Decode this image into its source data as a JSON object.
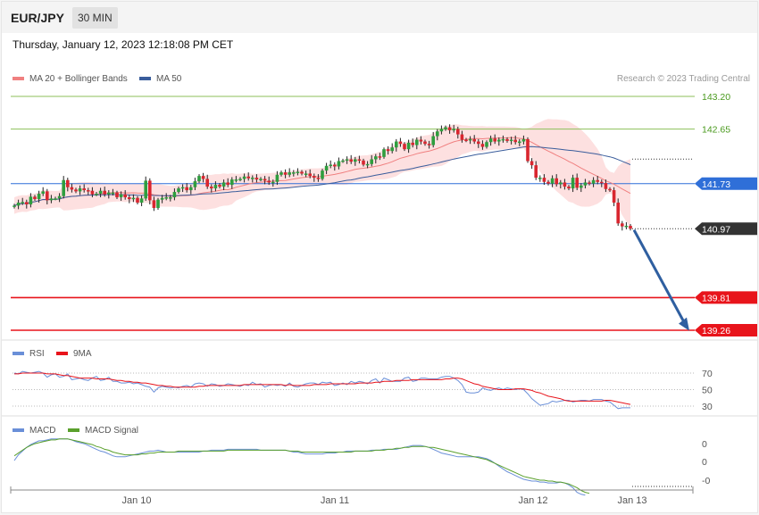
{
  "header": {
    "symbol": "EUR/JPY",
    "timeframe": "30 MIN",
    "datetime": "Thursday, January 12, 2023 12:18:08 PM CET",
    "copyright": "Research © 2023 Trading Central"
  },
  "colors": {
    "candle_up": "#2e9e3e",
    "candle_down": "#d9262f",
    "ma20": "#f08080",
    "ma50": "#3a5d9c",
    "bollinger_fill": "#fde0e0",
    "resistance": "#8cbf5a",
    "pivot": "#2f6fd8",
    "support": "#e8141b",
    "price_tag": "#333333",
    "rsi": "#6a8fd8",
    "rsi_ma": "#e8141b",
    "macd": "#6a8fd8",
    "macd_signal": "#5aa02c",
    "arrow": "#2f5fa0"
  },
  "chart_data": [
    {
      "type": "candlestick",
      "title": "",
      "legend": [
        "MA 20 + Bollinger Bands",
        "MA 50"
      ],
      "x_ticks": [
        "Jan 10",
        "Jan 11",
        "Jan 12",
        "Jan 13"
      ],
      "ylim": [
        139.15,
        143.45
      ],
      "levels": [
        {
          "label": "143.20",
          "value": 143.2,
          "kind": "resistance"
        },
        {
          "label": "142.65",
          "value": 142.65,
          "kind": "resistance"
        },
        {
          "label": "141.73",
          "value": 141.73,
          "kind": "pivot"
        },
        {
          "label": "140.97",
          "value": 140.97,
          "kind": "last"
        },
        {
          "label": "139.81",
          "value": 139.81,
          "kind": "support"
        },
        {
          "label": "139.26",
          "value": 139.26,
          "kind": "support"
        }
      ],
      "arrow": {
        "from": 140.95,
        "to": 139.25
      },
      "close": [
        141.36,
        141.41,
        141.42,
        141.38,
        141.51,
        141.47,
        141.56,
        141.6,
        141.45,
        141.48,
        141.48,
        141.52,
        141.79,
        141.67,
        141.63,
        141.6,
        141.65,
        141.62,
        141.61,
        141.55,
        141.56,
        141.61,
        141.55,
        141.58,
        141.58,
        141.5,
        141.55,
        141.5,
        141.47,
        141.49,
        141.41,
        141.48,
        141.78,
        141.45,
        141.32,
        141.46,
        141.49,
        141.5,
        141.5,
        141.59,
        141.65,
        141.67,
        141.62,
        141.67,
        141.77,
        141.86,
        141.81,
        141.68,
        141.65,
        141.71,
        141.68,
        141.75,
        141.71,
        141.8,
        141.8,
        141.81,
        141.85,
        141.82,
        141.83,
        141.8,
        141.81,
        141.78,
        141.75,
        141.76,
        141.88,
        141.92,
        141.88,
        141.92,
        141.92,
        141.93,
        141.9,
        141.9,
        141.86,
        141.83,
        141.81,
        141.95,
        142.03,
        142.05,
        142.02,
        142.11,
        142.12,
        142.14,
        142.1,
        142.14,
        142.12,
        142.05,
        142.06,
        142.14,
        142.19,
        142.18,
        142.31,
        142.28,
        142.34,
        142.44,
        142.4,
        142.31,
        142.42,
        142.38,
        142.47,
        142.44,
        142.4,
        142.38,
        142.53,
        142.61,
        142.65,
        142.68,
        142.63,
        142.65,
        142.56,
        142.47,
        142.46,
        142.48,
        142.44,
        142.4,
        142.35,
        142.43,
        142.49,
        142.44,
        142.47,
        142.48,
        142.45,
        142.47,
        142.43,
        142.44,
        142.48,
        142.11,
        142.04,
        141.83,
        141.83,
        141.76,
        141.73,
        141.82,
        141.72,
        141.75,
        141.68,
        141.65,
        141.83,
        141.66,
        141.7,
        141.75,
        141.73,
        141.79,
        141.76,
        141.74,
        141.64,
        141.62,
        141.41,
        141.06,
        141.01,
        141.02,
        140.97
      ]
    },
    {
      "type": "line",
      "title": "",
      "legend": [
        "RSI",
        "9MA"
      ],
      "levels": [
        "70",
        "50",
        "30"
      ],
      "ylim": [
        25,
        80
      ],
      "series": [
        {
          "name": "RSI",
          "values": [
            70,
            69,
            72,
            71,
            70,
            71,
            72,
            70,
            65,
            68,
            69,
            65,
            66,
            69,
            62,
            63,
            64,
            62,
            61,
            64,
            66,
            61,
            62,
            65,
            60,
            60,
            58,
            58,
            59,
            57,
            58,
            56,
            54,
            53,
            47,
            52,
            54,
            53,
            52,
            53,
            52,
            54,
            55,
            53,
            57,
            58,
            57,
            54,
            57,
            56,
            54,
            55,
            57,
            56,
            55,
            54,
            56,
            55,
            59,
            56,
            57,
            53,
            55,
            56,
            55,
            56,
            54,
            58,
            54,
            53,
            55,
            57,
            58,
            58,
            56,
            59,
            58,
            59,
            55,
            56,
            58,
            56,
            60,
            58,
            60,
            59,
            57,
            61,
            63,
            58,
            64,
            62,
            60,
            60,
            60,
            64,
            65,
            60,
            61,
            64,
            64,
            63,
            63,
            63,
            65,
            66,
            66,
            64,
            61,
            56,
            47,
            46,
            46,
            47,
            52,
            50,
            49,
            51,
            52,
            50,
            52,
            51,
            50,
            51,
            50,
            45,
            39,
            35,
            31,
            32,
            33,
            36,
            35,
            36,
            37,
            37,
            35,
            36,
            37,
            37,
            36,
            38,
            38,
            38,
            36,
            35,
            31,
            27,
            28,
            28,
            28
          ]
        },
        {
          "name": "9MA",
          "values": [
            69,
            69,
            70,
            70,
            70,
            70,
            70,
            70,
            69,
            69,
            69,
            68,
            67,
            67,
            66,
            65,
            64,
            64,
            64,
            64,
            63,
            63,
            63,
            63,
            62,
            61,
            61,
            60,
            60,
            59,
            59,
            58,
            58,
            57,
            56,
            55,
            55,
            54,
            54,
            53,
            53,
            53,
            53,
            53,
            53,
            54,
            54,
            55,
            55,
            55,
            55,
            55,
            55,
            55,
            55,
            55,
            56,
            56,
            56,
            56,
            56,
            56,
            56,
            56,
            56,
            56,
            55,
            56,
            55,
            55,
            55,
            55,
            55,
            56,
            56,
            56,
            56,
            57,
            57,
            57,
            57,
            57,
            57,
            57,
            58,
            58,
            58,
            58,
            59,
            59,
            60,
            60,
            60,
            61,
            61,
            61,
            61,
            62,
            62,
            62,
            62,
            62,
            62,
            62,
            62,
            63,
            63,
            64,
            64,
            63,
            61,
            59,
            57,
            56,
            54,
            53,
            52,
            51,
            50,
            50,
            50,
            50,
            51,
            51,
            51,
            50,
            49,
            47,
            46,
            44,
            42,
            41,
            40,
            39,
            37,
            36,
            36,
            36,
            36,
            36,
            36,
            36,
            36,
            36,
            37,
            37,
            36,
            35,
            34,
            33,
            32
          ]
        }
      ]
    },
    {
      "type": "line",
      "title": "",
      "legend": [
        "MACD",
        "MACD Signal"
      ],
      "levels": [
        "0",
        "0",
        "-0"
      ],
      "ylim": [
        -0.37,
        0.3
      ],
      "series": [
        {
          "name": "MACD",
          "values": [
            0.01,
            0.07,
            0.11,
            0.15,
            0.18,
            0.2,
            0.22,
            0.22,
            0.23,
            0.24,
            0.24,
            0.24,
            0.24,
            0.24,
            0.23,
            0.21,
            0.2,
            0.19,
            0.17,
            0.15,
            0.13,
            0.11,
            0.1,
            0.08,
            0.06,
            0.05,
            0.05,
            0.05,
            0.06,
            0.07,
            0.08,
            0.09,
            0.1,
            0.11,
            0.11,
            0.12,
            0.11,
            0.1,
            0.1,
            0.1,
            0.1,
            0.1,
            0.1,
            0.1,
            0.1,
            0.1,
            0.11,
            0.11,
            0.12,
            0.12,
            0.12,
            0.12,
            0.13,
            0.13,
            0.13,
            0.13,
            0.13,
            0.13,
            0.13,
            0.13,
            0.12,
            0.12,
            0.12,
            0.12,
            0.12,
            0.12,
            0.12,
            0.11,
            0.1,
            0.1,
            0.09,
            0.08,
            0.08,
            0.08,
            0.08,
            0.08,
            0.09,
            0.09,
            0.09,
            0.1,
            0.1,
            0.11,
            0.11,
            0.11,
            0.11,
            0.11,
            0.11,
            0.12,
            0.12,
            0.12,
            0.13,
            0.13,
            0.13,
            0.13,
            0.14,
            0.15,
            0.16,
            0.17,
            0.17,
            0.17,
            0.16,
            0.15,
            0.13,
            0.11,
            0.09,
            0.08,
            0.07,
            0.06,
            0.05,
            0.05,
            0.05,
            0.05,
            0.05,
            0.05,
            0.04,
            0.03,
            0.01,
            -0.02,
            -0.05,
            -0.08,
            -0.11,
            -0.13,
            -0.15,
            -0.17,
            -0.19,
            -0.2,
            -0.21,
            -0.21,
            -0.22,
            -0.22,
            -0.23,
            -0.23,
            -0.23,
            -0.22,
            -0.23,
            -0.25,
            -0.28,
            -0.33,
            -0.35,
            -0.36
          ]
        },
        {
          "name": "MACD Signal",
          "values": [
            0.06,
            0.09,
            0.12,
            0.15,
            0.17,
            0.19,
            0.2,
            0.21,
            0.22,
            0.23,
            0.23,
            0.24,
            0.24,
            0.24,
            0.23,
            0.22,
            0.21,
            0.2,
            0.19,
            0.18,
            0.16,
            0.15,
            0.13,
            0.12,
            0.1,
            0.09,
            0.08,
            0.07,
            0.07,
            0.07,
            0.07,
            0.08,
            0.08,
            0.09,
            0.09,
            0.1,
            0.1,
            0.1,
            0.1,
            0.1,
            0.11,
            0.11,
            0.11,
            0.11,
            0.11,
            0.11,
            0.11,
            0.11,
            0.11,
            0.11,
            0.11,
            0.11,
            0.12,
            0.12,
            0.12,
            0.12,
            0.12,
            0.12,
            0.12,
            0.12,
            0.12,
            0.12,
            0.12,
            0.12,
            0.12,
            0.12,
            0.12,
            0.11,
            0.11,
            0.11,
            0.1,
            0.1,
            0.1,
            0.1,
            0.1,
            0.1,
            0.1,
            0.1,
            0.1,
            0.1,
            0.1,
            0.1,
            0.1,
            0.11,
            0.11,
            0.11,
            0.11,
            0.11,
            0.12,
            0.12,
            0.12,
            0.13,
            0.13,
            0.14,
            0.14,
            0.15,
            0.15,
            0.16,
            0.16,
            0.16,
            0.16,
            0.15,
            0.15,
            0.14,
            0.13,
            0.12,
            0.11,
            0.1,
            0.09,
            0.08,
            0.07,
            0.06,
            0.05,
            0.04,
            0.03,
            0.02,
            0.0,
            -0.02,
            -0.04,
            -0.06,
            -0.08,
            -0.1,
            -0.12,
            -0.14,
            -0.16,
            -0.17,
            -0.18,
            -0.19,
            -0.2,
            -0.2,
            -0.21,
            -0.21,
            -0.22,
            -0.22,
            -0.23,
            -0.24,
            -0.26,
            -0.28,
            -0.31,
            -0.33,
            -0.34
          ]
        }
      ]
    }
  ]
}
